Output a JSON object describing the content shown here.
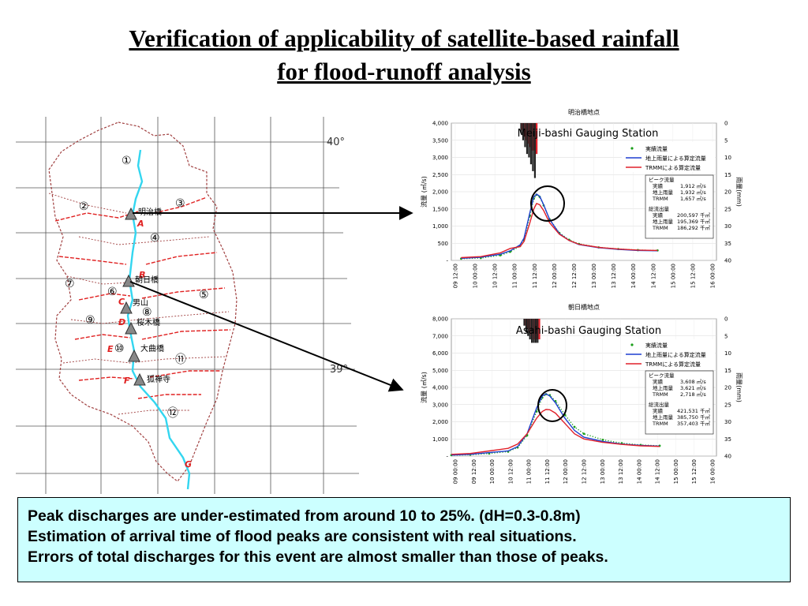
{
  "title": {
    "line1": "Verification of applicability of satellite-based rainfall",
    "line2": "for flood-runoff analysis"
  },
  "map": {
    "lat_top": "40°",
    "lat_bottom": "39°",
    "basins": [
      "①",
      "②",
      "③",
      "④",
      "⑤",
      "⑥",
      "⑦",
      "⑧",
      "⑨",
      "⑩",
      "⑪",
      "⑫"
    ],
    "stations": [
      "明治橋",
      "朝日橋",
      "男山",
      "桜木橋",
      "大曲橋",
      "狐禅寺"
    ],
    "points": [
      "A",
      "B",
      "C",
      "D",
      "E",
      "F",
      "G"
    ]
  },
  "chart_data": [
    {
      "type": "line",
      "title": "明治橋地点",
      "annotation": "Meiji-bashi Gauging Station",
      "ylabel": "流量 (㎥/s)",
      "y2label": "雨量(mm)",
      "ylim": [
        0,
        4000
      ],
      "y_ticks": [
        "4,000",
        "3,500",
        "3,000",
        "2,500",
        "2,000",
        "1,500",
        "1,000",
        "500",
        "-"
      ],
      "y2lim": [
        0,
        40
      ],
      "y2_ticks": [
        "0",
        "5",
        "10",
        "15",
        "20",
        "25",
        "30",
        "35",
        "40"
      ],
      "x_ticks": [
        "09 12:00",
        "10 00:00",
        "10 12:00",
        "11 00:00",
        "11 12:00",
        "12 00:00",
        "12 12:00",
        "13 00:00",
        "13 12:00",
        "14 00:00",
        "14 12:00",
        "15 00:00",
        "15 12:00",
        "16 00:00"
      ],
      "legend": [
        "実績流量",
        "地上雨量による算定流量",
        "TRMMによる算定流量"
      ],
      "legend_position": "top-right",
      "info_box": {
        "peak_title": "ピーク流量",
        "peak_rows": [
          [
            "実績",
            "1,912 ㎥/s"
          ],
          [
            "地上雨量",
            "1,932 ㎥/s"
          ],
          [
            "TRMM",
            "1,657 ㎥/s"
          ]
        ],
        "total_title": "総流出量",
        "total_rows": [
          [
            "実績",
            "200,597 千㎥"
          ],
          [
            "地上雨量",
            "195,369 千㎥"
          ],
          [
            "TRMM",
            "186,292 千㎥"
          ]
        ]
      },
      "x": [
        9.5,
        10,
        10.5,
        10.75,
        11,
        11.1,
        11.25,
        11.35,
        11.42,
        11.5,
        11.6,
        11.75,
        12,
        12.25,
        12.5,
        13,
        13.5,
        14,
        14.5
      ],
      "series": [
        {
          "name": "実績流量",
          "values": [
            50,
            70,
            150,
            250,
            420,
            600,
            1300,
            1800,
            1912,
            1850,
            1600,
            1200,
            800,
            600,
            480,
            380,
            330,
            300,
            290
          ]
        },
        {
          "name": "地上雨量による算定流量",
          "values": [
            60,
            90,
            180,
            280,
            450,
            650,
            1400,
            1850,
            1932,
            1870,
            1620,
            1200,
            780,
            580,
            460,
            370,
            320,
            290,
            280
          ]
        },
        {
          "name": "TRMMによる算定流量",
          "values": [
            80,
            110,
            220,
            350,
            400,
            550,
            1100,
            1500,
            1657,
            1620,
            1450,
            1100,
            760,
            580,
            470,
            380,
            330,
            300,
            290
          ]
        }
      ],
      "rain_y2": {
        "x": [
          11.05,
          11.1,
          11.15,
          11.2,
          11.25,
          11.3,
          11.35,
          11.4
        ],
        "black": [
          3,
          5,
          7,
          9,
          10,
          12,
          14,
          16
        ],
        "red": [
          2,
          4,
          5,
          6,
          7,
          8,
          8,
          9
        ]
      }
    },
    {
      "type": "line",
      "title": "朝日橋地点",
      "annotation": "Asahi-bashi Gauging Station",
      "ylabel": "流量 (㎥/s)",
      "y2label": "雨量(mm)",
      "ylim": [
        0,
        8000
      ],
      "y_ticks": [
        "8,000",
        "7,000",
        "6,000",
        "5,000",
        "4,000",
        "3,000",
        "2,000",
        "1,000",
        "-"
      ],
      "y2lim": [
        0,
        40
      ],
      "y2_ticks": [
        "0",
        "5",
        "10",
        "15",
        "20",
        "25",
        "30",
        "35",
        "40"
      ],
      "x_ticks": [
        "09 00:00",
        "09 12:00",
        "10 00:00",
        "10 12:00",
        "11 00:00",
        "11 12:00",
        "12 00:00",
        "12 12:00",
        "13 00:00",
        "13 12:00",
        "14 00:00",
        "14 12:00",
        "15 00:00",
        "15 12:00",
        "16 00:00"
      ],
      "legend": [
        "実績流量",
        "地上雨量による算定流量",
        "TRMMによる算定流量"
      ],
      "legend_position": "top-right",
      "info_box": {
        "peak_title": "ピーク流量",
        "peak_rows": [
          [
            "実績",
            "3,608 ㎥/s"
          ],
          [
            "地上雨量",
            "3,621 ㎥/s"
          ],
          [
            "TRMM",
            "2,718 ㎥/s"
          ]
        ],
        "total_title": "総流出量",
        "total_rows": [
          [
            "実績",
            "421,531 千㎥"
          ],
          [
            "地上雨量",
            "385,750 千㎥"
          ],
          [
            "TRMM",
            "357,403 千㎥"
          ]
        ]
      },
      "x": [
        9,
        9.5,
        10,
        10.5,
        10.75,
        11,
        11.25,
        11.4,
        11.5,
        11.6,
        11.75,
        12,
        12.25,
        12.5,
        13,
        13.5,
        14,
        14.5
      ],
      "series": [
        {
          "name": "実績流量",
          "values": [
            50,
            80,
            150,
            260,
            500,
            1200,
            2600,
            3400,
            3608,
            3550,
            3200,
            2400,
            1700,
            1300,
            950,
            750,
            650,
            600
          ]
        },
        {
          "name": "地上雨量による算定流量",
          "values": [
            60,
            100,
            200,
            300,
            550,
            1300,
            2800,
            3500,
            3621,
            3500,
            3100,
            2200,
            1500,
            1100,
            850,
            700,
            620,
            580
          ]
        },
        {
          "name": "TRMMによる算定流量",
          "values": [
            100,
            150,
            300,
            450,
            700,
            1300,
            2200,
            2600,
            2718,
            2700,
            2500,
            1900,
            1300,
            1000,
            800,
            680,
            600,
            560
          ]
        }
      ],
      "rain_y2": {
        "x": [
          10.95,
          11.0,
          11.05,
          11.1,
          11.15,
          11.2,
          11.25,
          11.3
        ],
        "black": [
          2,
          4,
          5,
          6,
          7,
          7,
          7,
          7
        ],
        "red": [
          2,
          3,
          4,
          5,
          6,
          6,
          6,
          6
        ]
      }
    }
  ],
  "note": {
    "line1": "Peak discharges are under-estimated from around 10 to 25%. (dH=0.3-0.8m)",
    "line2": "Estimation of arrival time of flood peaks are consistent with real situations.",
    "line3": "Errors of total discharges for this event are almost smaller than those of peaks."
  },
  "colors": {
    "observed": "#1a9e1a",
    "ground": "#1f3fd0",
    "trmm": "#e0202a",
    "river": "#33d6f0",
    "boundary": "#e02020",
    "note_bg": "#ccffff"
  }
}
